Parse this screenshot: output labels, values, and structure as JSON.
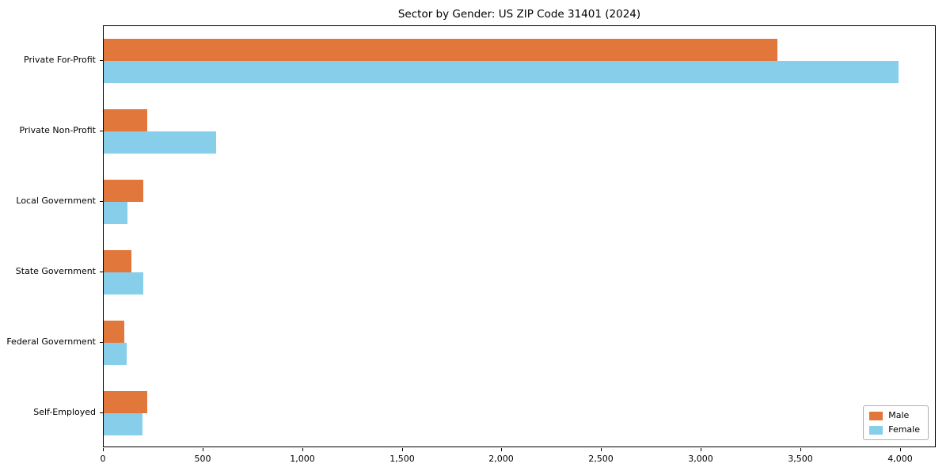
{
  "chart_data": {
    "type": "bar",
    "orientation": "horizontal",
    "title": "Sector by Gender: US ZIP Code 31401 (2024)",
    "categories": [
      "Private For-Profit",
      "Private Non-Profit",
      "Local Government",
      "State Government",
      "Federal Government",
      "Self-Employed"
    ],
    "series": [
      {
        "name": "Male",
        "color": "#e2773b",
        "values": [
          3380,
          220,
          200,
          140,
          105,
          220
        ]
      },
      {
        "name": "Female",
        "color": "#87ceeb",
        "values": [
          3990,
          565,
          120,
          200,
          115,
          195
        ]
      }
    ],
    "xlim": [
      0,
      4180
    ],
    "xticks": [
      0,
      500,
      1000,
      1500,
      2000,
      2500,
      3000,
      3500,
      4000
    ],
    "xtick_labels": [
      "0",
      "500",
      "1,000",
      "1,500",
      "2,000",
      "2,500",
      "3,000",
      "3,500",
      "4,000"
    ],
    "ylabel": "",
    "xlabel": "",
    "grid": false,
    "legend_position": "lower right"
  }
}
